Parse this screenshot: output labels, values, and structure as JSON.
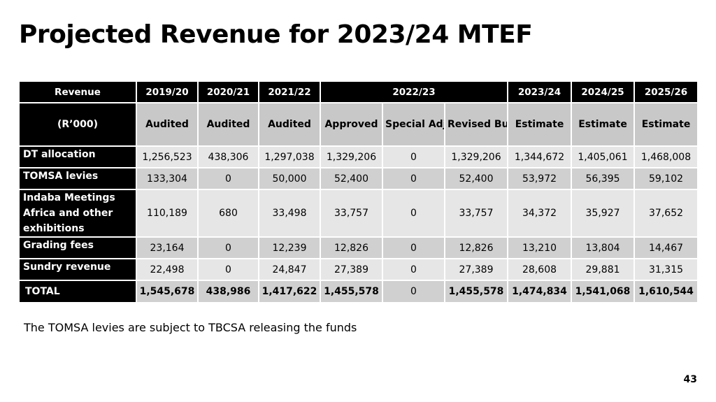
{
  "title": "Projected Revenue for 2023/24 MTEF",
  "table": {
    "header_row1": {
      "revenue": "Revenue",
      "y2019": "2019/20",
      "y2020": "2020/21",
      "y2021": "2021/22",
      "y2022": "2022/23",
      "y2023": "2023/24",
      "y2024": "2024/25",
      "y2025": "2025/26"
    },
    "header_row2": {
      "unit": "(R’000)",
      "c1": "Audited",
      "c2": "Audited",
      "c3": "Audited",
      "c4": "Approved",
      "c5": "Special Adjustme nts",
      "c6": "Revised Budget",
      "c7": "Estimate",
      "c8": "Estimate",
      "c9": "Estimate"
    },
    "rows": [
      {
        "label": "DT allocation",
        "values": [
          "1,256,523",
          "438,306",
          "1,297,038",
          "1,329,206",
          "0",
          "1,329,206",
          "1,344,672",
          "1,405,061",
          "1,468,008"
        ]
      },
      {
        "label": "TOMSA levies",
        "values": [
          "133,304",
          "0",
          "50,000",
          "52,400",
          "0",
          "52,400",
          "53,972",
          "56,395",
          "59,102"
        ]
      },
      {
        "label": "Indaba Meetings Africa and other exhibitions",
        "values": [
          "110,189",
          "680",
          "33,498",
          "33,757",
          "0",
          "33,757",
          "34,372",
          "35,927",
          "37,652"
        ]
      },
      {
        "label": "Grading fees",
        "values": [
          "23,164",
          "0",
          "12,239",
          "12,826",
          "0",
          "12,826",
          "13,210",
          "13,804",
          "14,467"
        ]
      },
      {
        "label": "Sundry revenue",
        "values": [
          "22,498",
          "0",
          "24,847",
          "27,389",
          "0",
          "27,389",
          "28,608",
          "29,881",
          "31,315"
        ]
      }
    ],
    "total": {
      "label": "TOTAL",
      "values": [
        "1,545,678",
        "438,986",
        "1,417,622",
        "1,455,578",
        "0",
        "1,455,578",
        "1,474,834",
        "1,541,068",
        "1,610,544"
      ]
    }
  },
  "note": "The TOMSA levies are subject to TBCSA releasing the funds",
  "page_number": "43"
}
